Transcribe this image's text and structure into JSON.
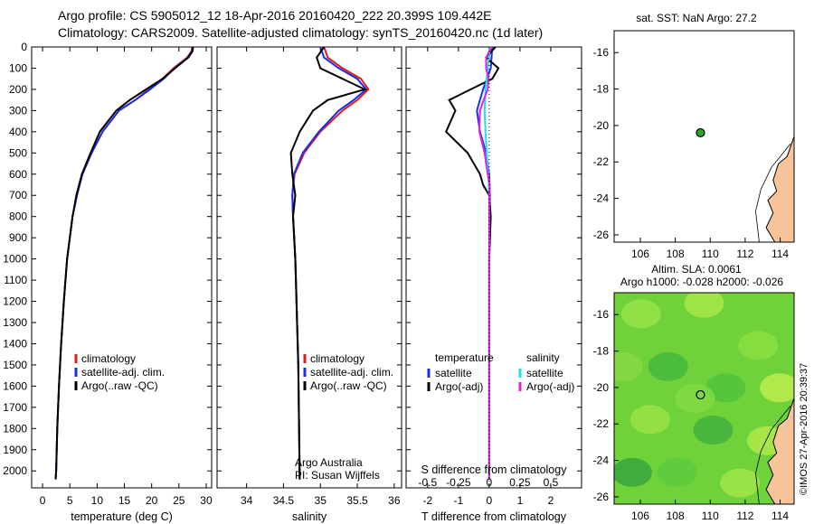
{
  "header": {
    "line1": "Argo profile: CS 5905012_12 18-Apr-2016 20160420_222 20.399S 109.442E",
    "line2": "Climatology: CARS2009. Satellite-adjusted climatology: synTS_20160420.nc (1d later)"
  },
  "colors": {
    "climatology": "#e11b1b",
    "satellite": "#1a2fe8",
    "argo": "#000000",
    "satellite_s": "#19e6e6",
    "argo_s": "#e41ee4",
    "land": "#f9c49a",
    "ocean_dot": "#2aa81f"
  },
  "chart_data": [
    {
      "type": "line",
      "xlabel": "temperature (deg C)",
      "xlim": [
        -2,
        31
      ],
      "ylim": [
        2080,
        0
      ],
      "xticks": [
        0,
        5,
        10,
        15,
        20,
        25,
        30
      ],
      "yticks": [
        0,
        100,
        200,
        300,
        400,
        500,
        600,
        700,
        800,
        900,
        1000,
        1100,
        1200,
        1300,
        1400,
        1500,
        1600,
        1700,
        1800,
        1900,
        2000
      ],
      "legend": [
        "climatology",
        "satellite-adj. clim.",
        "Argo(..raw -QC)"
      ],
      "series": [
        {
          "name": "climatology",
          "depth": [
            0,
            20,
            50,
            100,
            150,
            200,
            250,
            300,
            400,
            500,
            600,
            700,
            800,
            1000,
            1200,
            1400,
            1600,
            1800,
            2000,
            2040
          ],
          "values": [
            27.4,
            27.3,
            26.5,
            24.0,
            22.0,
            19.5,
            17.0,
            14.0,
            11.0,
            9.0,
            7.3,
            6.3,
            5.5,
            4.5,
            3.9,
            3.4,
            3.0,
            2.7,
            2.5,
            2.4
          ]
        },
        {
          "name": "satellite-adj. clim.",
          "depth": [
            0,
            20,
            50,
            100,
            150,
            200,
            250,
            300,
            400,
            500,
            600,
            700,
            800,
            1000,
            1200,
            1400,
            1600,
            1800,
            2000,
            2040
          ],
          "values": [
            27.5,
            27.4,
            26.6,
            24.2,
            22.2,
            19.7,
            17.0,
            14.0,
            11.0,
            9.0,
            7.3,
            6.3,
            5.5,
            4.5,
            3.9,
            3.4,
            3.0,
            2.7,
            2.5,
            2.4
          ]
        },
        {
          "name": "Argo(..raw -QC)",
          "depth": [
            0,
            20,
            50,
            100,
            150,
            200,
            250,
            300,
            400,
            500,
            600,
            700,
            800,
            1000,
            1200,
            1400,
            1600,
            1800,
            2000,
            2040
          ],
          "values": [
            27.6,
            27.5,
            26.7,
            24.3,
            22.0,
            19.0,
            16.0,
            13.5,
            10.5,
            8.8,
            7.2,
            6.2,
            5.5,
            4.5,
            3.9,
            3.4,
            3.0,
            2.7,
            2.5,
            2.4
          ]
        }
      ]
    },
    {
      "type": "line",
      "xlabel": "salinity",
      "xlim": [
        33.6,
        36.1
      ],
      "ylim": [
        2080,
        0
      ],
      "xticks": [
        34,
        34.5,
        35,
        35.5,
        36
      ],
      "legend": [
        "climatology",
        "satellite-adj. clim.",
        "Argo(..raw -QC)"
      ],
      "annotation": [
        "Argo Australia",
        "PI: Susan Wijffels"
      ],
      "series": [
        {
          "name": "climatology",
          "depth": [
            0,
            50,
            100,
            150,
            200,
            250,
            300,
            400,
            500,
            600,
            700,
            800,
            1000,
            1500,
            2040
          ],
          "values": [
            35.05,
            35.1,
            35.3,
            35.55,
            35.65,
            35.5,
            35.3,
            35.0,
            34.78,
            34.65,
            34.62,
            34.63,
            34.66,
            34.7,
            34.72
          ]
        },
        {
          "name": "satellite-adj. clim.",
          "depth": [
            0,
            50,
            100,
            150,
            200,
            250,
            300,
            400,
            500,
            600,
            700,
            800,
            1000,
            1500,
            2040
          ],
          "values": [
            35.0,
            35.05,
            35.25,
            35.5,
            35.62,
            35.45,
            35.25,
            34.98,
            34.76,
            34.64,
            34.62,
            34.63,
            34.66,
            34.7,
            34.72
          ]
        },
        {
          "name": "Argo(..raw -QC)",
          "depth": [
            0,
            50,
            100,
            150,
            200,
            250,
            300,
            400,
            500,
            600,
            700,
            800,
            1000,
            1500,
            2040
          ],
          "values": [
            35.05,
            34.95,
            35.0,
            35.3,
            35.6,
            35.1,
            34.9,
            34.72,
            34.6,
            34.62,
            34.66,
            34.63,
            34.66,
            34.7,
            34.72
          ]
        }
      ]
    },
    {
      "type": "line",
      "xlabel": "T difference from climatology",
      "xlabel2": "S difference from climatology",
      "xlim": [
        -2.7,
        3.0
      ],
      "ylim": [
        2080,
        0
      ],
      "xticks": [
        -2,
        -1,
        0,
        1,
        2
      ],
      "s_ticks": [
        "-0.5",
        "-0.25",
        "0",
        "0.25",
        "0.5"
      ],
      "legend": {
        "temperature": [
          "satellite",
          "Argo(-adj)"
        ],
        "salinity": [
          "satellite",
          "Argo(-adj)"
        ]
      },
      "series": [
        {
          "name": "temperature satellite",
          "depth": [
            0,
            100,
            200,
            300,
            400,
            500,
            600,
            700,
            800,
            1000,
            1500,
            2040
          ],
          "values": [
            0.1,
            0.05,
            -0.2,
            -0.4,
            -0.3,
            -0.1,
            0,
            0.02,
            0.01,
            0,
            0,
            0
          ]
        },
        {
          "name": "temperature Argo(-adj)",
          "depth": [
            0,
            50,
            100,
            150,
            200,
            250,
            300,
            400,
            500,
            600,
            650,
            700,
            800,
            1000,
            1500,
            2040
          ],
          "values": [
            0.2,
            -0.1,
            0.3,
            0.1,
            -0.6,
            -1.3,
            -1.1,
            -1.4,
            -0.7,
            -0.3,
            -0.2,
            0,
            0.05,
            0,
            0,
            0
          ]
        },
        {
          "name": "salinity satellite",
          "depth": [
            0,
            100,
            200,
            300,
            400,
            500,
            600,
            700,
            800,
            1000,
            1500,
            2040
          ],
          "values": [
            0.03,
            -0.05,
            -0.12,
            -0.15,
            -0.12,
            -0.08,
            -0.03,
            0,
            0,
            0,
            0,
            0
          ]
        },
        {
          "name": "salinity Argo(-adj)",
          "depth": [
            0,
            50,
            100,
            150,
            200,
            250,
            300,
            400,
            500,
            600,
            650,
            700,
            800,
            1000,
            1500,
            2040
          ],
          "values": [
            0.08,
            -0.1,
            -0.1,
            -0.02,
            -0.05,
            -0.18,
            -0.3,
            -0.32,
            -0.15,
            -0.05,
            0.02,
            0,
            0,
            0,
            0,
            0
          ]
        }
      ]
    },
    {
      "type": "scatter",
      "title": "sat. SST: NaN Argo: 27.2",
      "xlim": [
        104.5,
        114.8
      ],
      "ylim": [
        -26.4,
        -14.8
      ],
      "xticks": [
        106,
        108,
        110,
        112,
        114
      ],
      "yticks": [
        -16,
        -18,
        -20,
        -22,
        -24,
        -26
      ],
      "point": [
        109.442,
        -20.399
      ]
    },
    {
      "type": "heatmap",
      "title": "Altim. SLA: 0.0061",
      "subtitle": "Argo h1000: -0.028 h2000: -0.026",
      "xlim": [
        104.5,
        114.8
      ],
      "ylim": [
        -26.4,
        -14.8
      ],
      "xticks": [
        106,
        108,
        110,
        112,
        114
      ],
      "yticks": [
        -16,
        -18,
        -20,
        -22,
        -24,
        -26
      ],
      "point": [
        109.442,
        -20.399
      ],
      "side_label": "©IMOS 27-Apr-2016 20:39:37"
    }
  ]
}
